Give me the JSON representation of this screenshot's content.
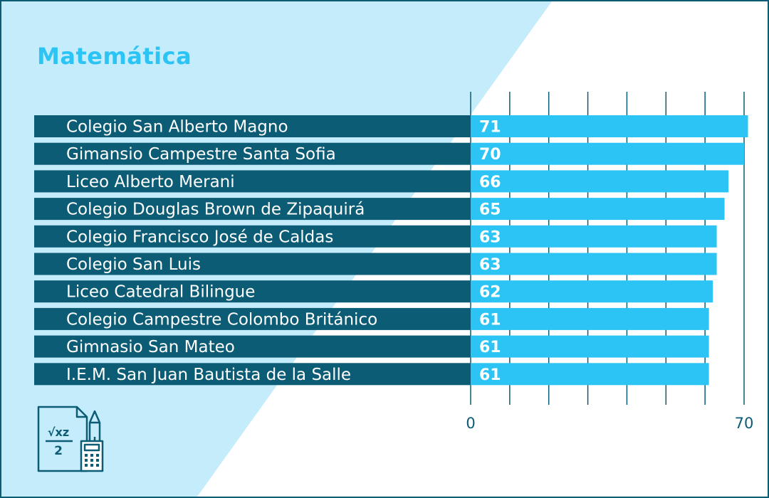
{
  "title": "Matemática",
  "colors": {
    "frame": "#0b5c74",
    "background_triangle": "#c5ecfb",
    "label_bar": "#0b5c74",
    "value_bar": "#2cc4f4",
    "title": "#2cc4f4",
    "gridline": "#0b5c74"
  },
  "icon": "math-calculator-document-icon",
  "icon_text": {
    "numerator": "√xz",
    "denominator": "2"
  },
  "chart_data": {
    "type": "bar",
    "orientation": "horizontal",
    "categories": [
      "Colegio San Alberto Magno",
      "Gimansio Campestre Santa Sofia",
      "Liceo Alberto Merani",
      "Colegio Douglas Brown de Zipaquirá",
      "Colegio Francisco José de Caldas",
      "Colegio San Luis",
      "Liceo Catedral Bilingue",
      "Colegio Campestre Colombo Británico",
      "Gimnasio San Mateo",
      "I.E.M. San Juan Bautista de la Salle"
    ],
    "values": [
      71,
      70,
      66,
      65,
      63,
      63,
      62,
      61,
      61,
      61
    ],
    "value_labels": [
      "71",
      "70",
      "66",
      "65",
      "63",
      "63",
      "62",
      "61",
      "61",
      "61"
    ],
    "xlim": [
      0,
      70
    ],
    "tick_labels": [
      "0",
      "70"
    ],
    "gridline_interval": 10,
    "grid": true
  }
}
